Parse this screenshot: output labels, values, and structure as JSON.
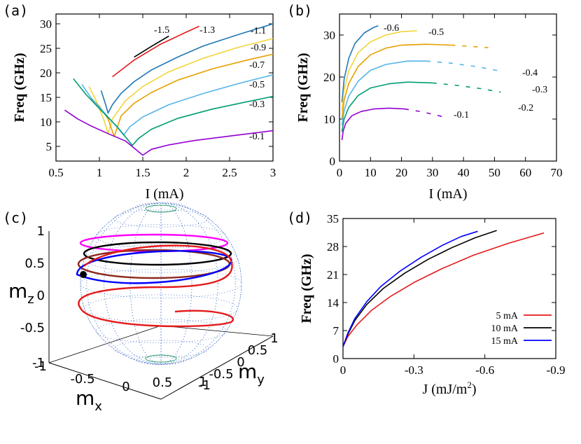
{
  "colors": {
    "black": "#000000",
    "red": "#e41a1c",
    "blue_dark": "#1f77b4",
    "yellow": "#f1d43a",
    "orange": "#e69f00",
    "light_blue": "#56b4e9",
    "green": "#009e73",
    "purple": "#9400d3",
    "magenta": "#ff00ff",
    "brown": "#8b2a1f",
    "blue": "#0000ff",
    "sphere_dots": "#3060c0"
  },
  "panels": [
    "(a)",
    "(b)",
    "(c)",
    "(d)"
  ],
  "chart_data": [
    {
      "type": "line",
      "panel": "(a)",
      "xlabel": "I (mA)",
      "ylabel": "Freq (GHz)",
      "xlim": [
        0.5,
        3
      ],
      "ylim": [
        2,
        32
      ],
      "xticks": [
        "0.5",
        "1",
        "1.5",
        "2",
        "2.5",
        "3"
      ],
      "yticks": [
        "5",
        "10",
        "15",
        "20",
        "25",
        "30"
      ],
      "series": [
        {
          "name": "-1.5",
          "color": "#000000",
          "x": [
            1.4,
            1.6,
            1.8
          ],
          "y": [
            23.2,
            25.4,
            27.5
          ]
        },
        {
          "name": "-1.3",
          "color": "#e41a1c",
          "x": [
            1.15,
            1.4,
            1.7,
            2.0,
            2.15
          ],
          "y": [
            19.2,
            22.6,
            25.8,
            28.3,
            29.5
          ]
        },
        {
          "name": "-1.1",
          "color": "#1f77b4",
          "x": [
            1.02,
            1.07,
            1.1,
            1.15,
            1.25,
            1.4,
            1.6,
            1.9,
            2.2,
            2.6,
            3.0
          ],
          "y": [
            16.4,
            13.6,
            11.8,
            13.5,
            15.8,
            18.2,
            20.6,
            23.2,
            25.5,
            27.8,
            30.0
          ]
        },
        {
          "name": "-0.9",
          "color": "#f1d43a",
          "x": [
            0.88,
            0.95,
            1.05,
            1.1,
            1.15,
            1.3,
            1.5,
            1.8,
            2.2,
            2.6,
            3.0
          ],
          "y": [
            17.2,
            14.8,
            10.5,
            7.6,
            10.6,
            14.3,
            17.2,
            20.2,
            23.0,
            25.2,
            27.0
          ]
        },
        {
          "name": "-0.7",
          "color": "#e69f00",
          "x": [
            0.9,
            1.0,
            1.1,
            1.17,
            1.25,
            1.4,
            1.6,
            1.9,
            2.3,
            2.7,
            3.0
          ],
          "y": [
            14.8,
            13.2,
            10.6,
            7.0,
            11.2,
            13.8,
            16.0,
            18.5,
            20.8,
            22.6,
            23.8
          ]
        },
        {
          "name": "-0.5",
          "color": "#56b4e9",
          "x": [
            0.8,
            0.9,
            1.05,
            1.2,
            1.28,
            1.35,
            1.5,
            1.8,
            2.2,
            2.6,
            3.0
          ],
          "y": [
            17.6,
            15.0,
            12.0,
            9.0,
            7.3,
            9.0,
            11.0,
            13.5,
            15.8,
            17.8,
            19.6
          ]
        },
        {
          "name": "-0.3",
          "color": "#009e73",
          "x": [
            0.7,
            0.85,
            1.0,
            1.2,
            1.38,
            1.45,
            1.6,
            1.9,
            2.3,
            2.7,
            3.0
          ],
          "y": [
            18.8,
            15.5,
            12.7,
            9.1,
            5.2,
            6.6,
            8.5,
            10.7,
            12.6,
            14.1,
            15.2
          ]
        },
        {
          "name": "-0.1",
          "color": "#9400d3",
          "x": [
            0.6,
            0.75,
            0.9,
            1.1,
            1.3,
            1.5,
            1.6,
            1.8,
            2.1,
            2.5,
            3.0
          ],
          "y": [
            12.4,
            10.6,
            9.2,
            7.6,
            6.1,
            3.2,
            4.4,
            5.3,
            6.2,
            7.1,
            8.2
          ]
        }
      ]
    },
    {
      "type": "line",
      "panel": "(b)",
      "xlabel": "I (mA)",
      "ylabel": "Freq (GHz)",
      "xlim": [
        0,
        70
      ],
      "ylim": [
        0,
        35
      ],
      "xticks": [
        "0",
        "10",
        "20",
        "30",
        "40",
        "50",
        "60",
        "70"
      ],
      "yticks": [
        "0",
        "10",
        "20",
        "30"
      ],
      "series": [
        {
          "name": "-0.6",
          "color": "#1f77b4",
          "x": [
            0.8,
            1.5,
            3,
            5,
            8,
            11,
            12.5
          ],
          "y": [
            14,
            19.5,
            24.5,
            28,
            30.5,
            31.8,
            32.2
          ]
        },
        {
          "name": "-0.5",
          "color": "#f1d43a",
          "x": [
            0.8,
            1.5,
            3,
            6,
            10,
            15,
            20,
            25
          ],
          "y": [
            12,
            17,
            21.5,
            25.8,
            28.4,
            30,
            30.8,
            31
          ]
        },
        {
          "name": "-0.4",
          "color": "#e69f00",
          "x": [
            0.8,
            1.5,
            3,
            6,
            10,
            15,
            20,
            28,
            36,
            44,
            48
          ],
          "y": [
            10,
            14.5,
            18.5,
            22.5,
            25.3,
            26.9,
            27.6,
            27.8,
            27.6,
            27.2,
            27.0
          ]
        },
        {
          "name": "-0.3",
          "color": "#56b4e9",
          "x": [
            0.8,
            1.5,
            3,
            6,
            10,
            15,
            22,
            28,
            36,
            44,
            52
          ],
          "y": [
            8.5,
            12,
            15.5,
            19,
            21.6,
            23,
            23.8,
            23.8,
            23.3,
            22.5,
            21.4
          ]
        },
        {
          "name": "-0.2",
          "color": "#009e73",
          "x": [
            0.8,
            1.5,
            3,
            6,
            10,
            16,
            22,
            30,
            38,
            46,
            52
          ],
          "y": [
            7,
            10,
            12.8,
            15.6,
            17.4,
            18.4,
            18.8,
            18.6,
            18.0,
            17.2,
            16.4
          ]
        },
        {
          "name": "-0.1",
          "color": "#9400d3",
          "x": [
            0.8,
            1.2,
            2,
            4,
            7,
            11,
            16,
            21,
            26,
            31,
            35
          ],
          "y": [
            5,
            7.2,
            9,
            10.8,
            11.8,
            12.4,
            12.6,
            12.4,
            11.8,
            11.0,
            10.2
          ]
        }
      ]
    },
    {
      "type": "line",
      "panel": "(d)",
      "xlabel": "J (mJ/m",
      "xlabel_sup": "2",
      "xlabel_end": ")",
      "ylabel": "Freq (GHz)",
      "xlim": [
        0,
        -0.9
      ],
      "ylim": [
        0,
        35
      ],
      "xticks": [
        "0",
        "-0.3",
        "-0.6",
        "-0.9"
      ],
      "yticks": [
        "0",
        "7",
        "14",
        "21",
        "28",
        "35"
      ],
      "legend_position": "bottom-right",
      "series": [
        {
          "name": "5 mA",
          "color": "#e41a1c",
          "x": [
            0,
            -0.02,
            -0.06,
            -0.12,
            -0.2,
            -0.3,
            -0.42,
            -0.55,
            -0.7,
            -0.85
          ],
          "y": [
            3,
            5.5,
            8.5,
            12,
            15.5,
            19,
            22.5,
            25.8,
            28.8,
            31.4
          ]
        },
        {
          "name": "10 mA",
          "color": "#000000",
          "x": [
            0,
            -0.02,
            -0.05,
            -0.1,
            -0.17,
            -0.26,
            -0.36,
            -0.46,
            -0.56,
            -0.65
          ],
          "y": [
            3,
            6,
            9.5,
            13.5,
            17.5,
            21.3,
            24.8,
            27.7,
            30.2,
            32.0
          ]
        },
        {
          "name": "15 mA",
          "color": "#0000ff",
          "x": [
            0,
            -0.02,
            -0.05,
            -0.1,
            -0.16,
            -0.24,
            -0.33,
            -0.42,
            -0.5,
            -0.57
          ],
          "y": [
            3,
            6.3,
            10,
            14.2,
            18,
            21.8,
            25.3,
            28.3,
            30.5,
            31.8
          ]
        }
      ]
    }
  ],
  "sphere": {
    "panel": "(c)",
    "zlabel": "m",
    "zlabel_sub": "z",
    "xlabel": "m",
    "xlabel_sub": "x",
    "ylabel": "m",
    "ylabel_sub": "y",
    "zticks": [
      "1",
      "0.5",
      "0",
      "-0.5",
      "-1"
    ],
    "xticks": [
      "-1",
      "-0.5",
      "0",
      "0.5",
      "1"
    ],
    "yticks": [
      "-1",
      "-0.5",
      "0",
      "0.5",
      "1"
    ]
  }
}
